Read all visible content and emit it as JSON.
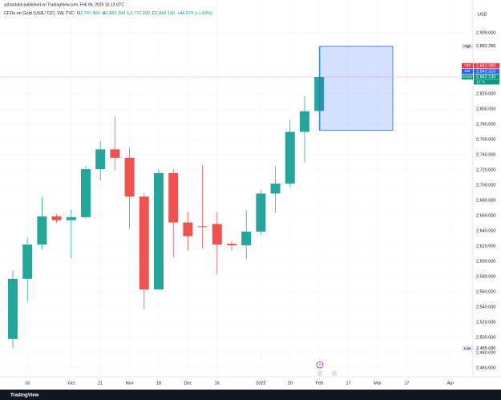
{
  "header": {
    "publisher": "azhantabit published on TradingView.com, Feb 06, 2025 15:13 UTC",
    "symbol": "CFDs on Gold (US$ / OZ), 1W, TVC",
    "ohlc": [
      {
        "prefix": "O",
        "text": "2,797.460"
      },
      {
        "prefix": "H",
        "text": "2,882.390"
      },
      {
        "prefix": "L",
        "text": "2,772.200"
      },
      {
        "prefix": "C",
        "text": "2,842.130"
      }
    ],
    "change": "+44.670 (+1.60%)",
    "currency": "USD",
    "brand": "TradingView"
  },
  "chart_data": {
    "type": "candlestick",
    "up_color": "#26a69a",
    "down_color": "#ef5350",
    "grid": true,
    "categories": [
      null,
      "16",
      null,
      null,
      "Oct",
      null,
      "21",
      null,
      "Nov",
      null,
      "18",
      null,
      "Dec",
      null,
      "16",
      null,
      null,
      "2025",
      null,
      "20",
      null,
      "Feb",
      null,
      "17",
      null,
      "Mar",
      null,
      "17",
      null,
      null,
      "Apr"
    ],
    "open": [
      2498,
      2577,
      2622,
      2659,
      2654,
      2658,
      2721,
      2747,
      2736,
      2685,
      2563,
      2716,
      2651,
      2646,
      2649,
      2623,
      2621,
      2639,
      2689,
      2702,
      2770,
      2797.46,
      null,
      null,
      null,
      null,
      null,
      null,
      null,
      null,
      null
    ],
    "high": [
      2588,
      2631,
      2685,
      2662,
      2668,
      2725,
      2758,
      2790,
      2750,
      2690,
      2721,
      2721,
      2665,
      2726,
      2664,
      2627,
      2667,
      2694,
      2725,
      2786,
      2817,
      2882.39,
      null,
      null,
      null,
      null,
      null,
      null,
      null,
      null,
      null
    ],
    "low": [
      2485.68,
      2547,
      2615,
      2650,
      2604,
      2656,
      2706,
      2720,
      2643,
      2537,
      2563,
      2605,
      2614,
      2617,
      2583,
      2614,
      2603,
      2635,
      2664,
      2697,
      2730,
      2772.2,
      null,
      null,
      null,
      null,
      null,
      null,
      null,
      null,
      null
    ],
    "close": [
      2577,
      2622,
      2659,
      2654,
      2658,
      2721,
      2747,
      2736,
      2685,
      2563,
      2716,
      2651,
      2633,
      2645,
      2622,
      2621,
      2639,
      2689,
      2702,
      2770,
      2797,
      2842.13,
      null,
      null,
      null,
      null,
      null,
      null,
      null,
      null,
      null
    ],
    "ylim": [
      2448.4,
      2943.2
    ],
    "yticks": [
      {
        "value": 2460,
        "label": "2,460.000"
      },
      {
        "value": 2480,
        "label": "2,480.000"
      },
      {
        "value": 2500,
        "label": "2,500.000"
      },
      {
        "value": 2520,
        "label": "2,520.000"
      },
      {
        "value": 2540,
        "label": "2,540.000"
      },
      {
        "value": 2560,
        "label": "2,560.000"
      },
      {
        "value": 2580,
        "label": "2,580.000"
      },
      {
        "value": 2600,
        "label": "2,600.000"
      },
      {
        "value": 2620,
        "label": "2,620.000"
      },
      {
        "value": 2640,
        "label": "2,640.000"
      },
      {
        "value": 2660,
        "label": "2,660.000"
      },
      {
        "value": 2680,
        "label": "2,680.000"
      },
      {
        "value": 2700,
        "label": "2,700.000"
      },
      {
        "value": 2720,
        "label": "2,720.000"
      },
      {
        "value": 2740,
        "label": "2,740.000"
      },
      {
        "value": 2760,
        "label": "2,760.000"
      },
      {
        "value": 2780,
        "label": "2,780.000"
      },
      {
        "value": 2800,
        "label": "2,800.000"
      },
      {
        "value": 2820,
        "label": "2,820.000"
      },
      {
        "value": 2900,
        "label": "2,900.000"
      }
    ],
    "price_labels": [
      {
        "label": "High",
        "value": 2882.39,
        "text": "2,882.390",
        "color": "#e0e3eb"
      },
      {
        "label": "ASK",
        "value": 2842.48,
        "text": "2,842.480",
        "color": "#f23645"
      },
      {
        "label": "Bid",
        "value": 2842.31,
        "text": "2,842.310",
        "color": "#2962ff"
      },
      {
        "label": "GOLD",
        "value": 2842.13,
        "text": "2,842.130",
        "color": "#089981"
      },
      {
        "label": "Low",
        "value": 2485.68,
        "text": "2,485.680",
        "color": "#e0e3eb"
      }
    ],
    "countdown": "12.7s"
  }
}
